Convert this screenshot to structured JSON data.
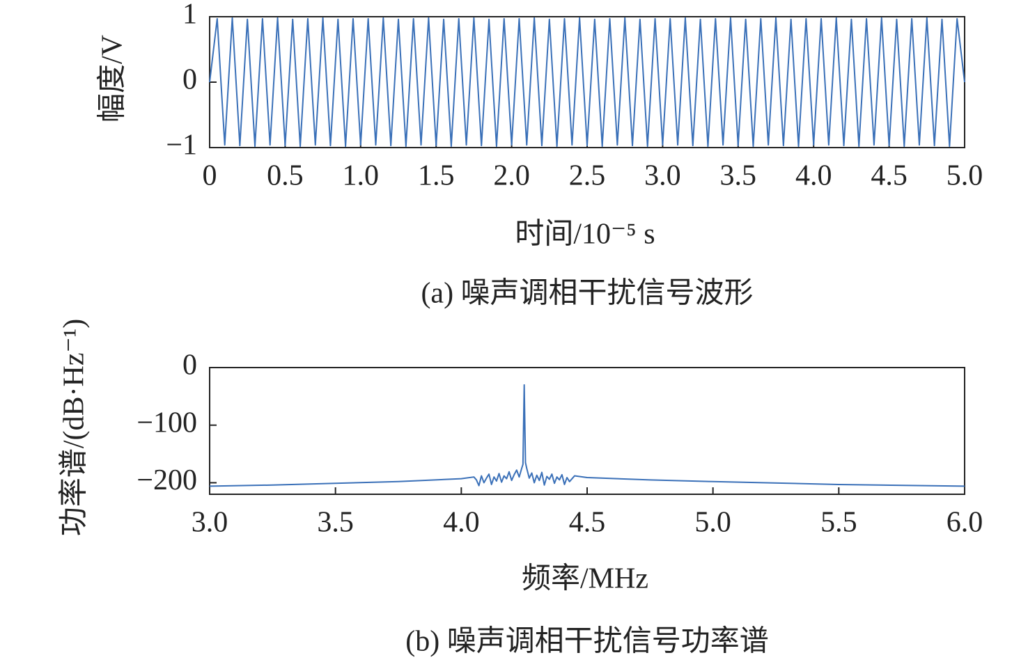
{
  "chart_data": [
    {
      "type": "line",
      "xlabel": "时间/10⁻⁵ s",
      "ylabel": "幅度/V",
      "caption": "(a) 噪声调相干扰信号波形",
      "color": "#3a70b8",
      "x": [
        0,
        0.05,
        0.1,
        0.15,
        0.2,
        0.25,
        0.3,
        0.35,
        0.4,
        0.45,
        0.5,
        0.55,
        0.6,
        0.65,
        0.7,
        0.75,
        0.8,
        0.85,
        0.9,
        0.95,
        1.0,
        1.05,
        1.1,
        1.15,
        1.2,
        1.25,
        1.3,
        1.35,
        1.4,
        1.45,
        1.5,
        1.55,
        1.6,
        1.65,
        1.7,
        1.75,
        1.8,
        1.85,
        1.9,
        1.95,
        2.0,
        2.05,
        2.1,
        2.15,
        2.2,
        2.25,
        2.3,
        2.35,
        2.4,
        2.45,
        2.5,
        2.55,
        2.6,
        2.65,
        2.7,
        2.75,
        2.8,
        2.85,
        2.9,
        2.95,
        3.0,
        3.05,
        3.1,
        3.15,
        3.2,
        3.25,
        3.3,
        3.35,
        3.4,
        3.45,
        3.5,
        3.55,
        3.6,
        3.65,
        3.7,
        3.75,
        3.8,
        3.85,
        3.9,
        3.95,
        4.0,
        4.05,
        4.1,
        4.15,
        4.2,
        4.25,
        4.3,
        4.35,
        4.4,
        4.45,
        4.5,
        4.55,
        4.6,
        4.65,
        4.7,
        4.75,
        4.8,
        4.85,
        4.9,
        4.95,
        5.0
      ],
      "values": [
        0,
        0.97,
        -0.96,
        0.98,
        -0.97,
        0.96,
        -0.98,
        0.97,
        -0.96,
        0.98,
        -0.97,
        0.96,
        -0.98,
        0.97,
        -0.96,
        0.98,
        -0.97,
        0.96,
        -0.98,
        0.97,
        -0.96,
        0.97,
        -0.96,
        0.98,
        -0.97,
        0.96,
        -0.98,
        0.97,
        -0.96,
        0.98,
        -0.97,
        0.96,
        -0.98,
        0.97,
        -0.96,
        0.98,
        -0.97,
        0.96,
        -0.98,
        0.97,
        -0.96,
        0.97,
        -0.96,
        0.98,
        -0.97,
        0.96,
        -0.98,
        0.97,
        -0.96,
        0.98,
        -0.97,
        0.96,
        -0.98,
        0.97,
        -0.96,
        0.98,
        -0.97,
        0.96,
        -0.98,
        0.97,
        -0.96,
        0.97,
        -0.96,
        0.98,
        -0.97,
        0.96,
        -0.98,
        0.97,
        -0.96,
        0.98,
        -0.97,
        0.96,
        -0.98,
        0.97,
        -0.96,
        0.98,
        -0.97,
        0.96,
        -0.98,
        0.97,
        -0.96,
        0.97,
        -0.96,
        0.98,
        -0.97,
        0.96,
        -0.98,
        0.97,
        -0.96,
        0.98,
        -0.97,
        0.96,
        -0.98,
        0.97,
        -0.96,
        0.98,
        -0.97,
        0.96,
        -0.98,
        0.97,
        0
      ],
      "xlim": [
        0,
        5
      ],
      "ylim": [
        -1,
        1
      ],
      "xticks": [
        0,
        0.5,
        {
          "value": 1,
          "label": "1.0"
        },
        1.5,
        {
          "value": 2,
          "label": "2.0"
        },
        2.5,
        {
          "value": 3,
          "label": "3.0"
        },
        3.5,
        {
          "value": 4,
          "label": "4.0"
        },
        4.5,
        {
          "value": 5,
          "label": "5.0"
        }
      ],
      "yticks": [
        {
          "value": -1,
          "label": "−1"
        },
        0,
        1
      ]
    },
    {
      "type": "line",
      "xlabel": "频率/MHz",
      "ylabel": "功率谱/(dB·Hz⁻¹)",
      "caption": "(b) 噪声调相干扰信号功率谱",
      "color": "#3a70b8",
      "x": [
        3.0,
        3.25,
        3.5,
        3.75,
        4.0,
        4.05,
        4.06,
        4.07,
        4.08,
        4.09,
        4.1,
        4.11,
        4.12,
        4.13,
        4.14,
        4.15,
        4.16,
        4.17,
        4.18,
        4.19,
        4.2,
        4.21,
        4.22,
        4.23,
        4.24,
        4.245,
        4.25,
        4.255,
        4.26,
        4.27,
        4.28,
        4.29,
        4.3,
        4.31,
        4.32,
        4.33,
        4.34,
        4.35,
        4.36,
        4.37,
        4.38,
        4.39,
        4.4,
        4.41,
        4.42,
        4.43,
        4.44,
        4.45,
        4.5,
        4.75,
        5.0,
        5.5,
        6.0
      ],
      "values": [
        -206,
        -204,
        -201,
        -198,
        -193,
        -190,
        -195,
        -205,
        -188,
        -200,
        -192,
        -185,
        -203,
        -190,
        -197,
        -184,
        -199,
        -188,
        -193,
        -181,
        -196,
        -186,
        -178,
        -190,
        -175,
        -168,
        -30,
        -165,
        -175,
        -192,
        -183,
        -200,
        -187,
        -196,
        -182,
        -204,
        -189,
        -194,
        -185,
        -201,
        -190,
        -195,
        -186,
        -203,
        -191,
        -198,
        -193,
        -188,
        -191,
        -195,
        -198,
        -203,
        -206
      ],
      "xlim": [
        3,
        6
      ],
      "ylim": [
        -220,
        0
      ],
      "xticks": [
        {
          "value": 3,
          "label": "3.0"
        },
        3.5,
        {
          "value": 4,
          "label": "4.0"
        },
        4.5,
        {
          "value": 5,
          "label": "5.0"
        },
        5.5,
        {
          "value": 6,
          "label": "6.0"
        }
      ],
      "yticks": [
        {
          "value": -200,
          "label": "−200"
        },
        {
          "value": -100,
          "label": "−100"
        },
        0
      ]
    }
  ]
}
